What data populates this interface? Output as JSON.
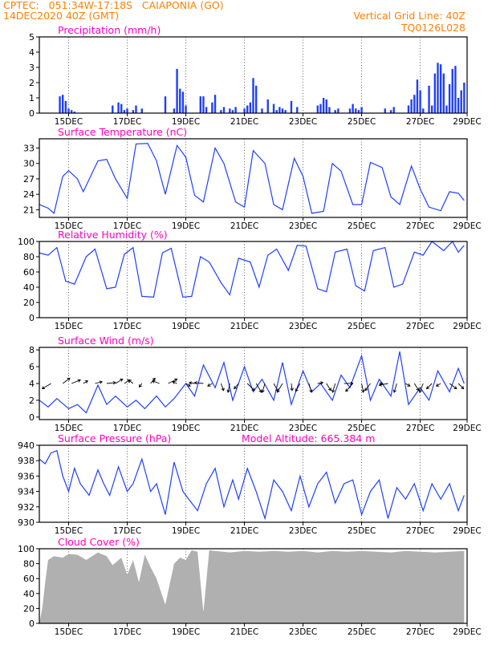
{
  "header": {
    "line1": "CPTEC:   051:34W-17:18S   CAIAPONIA (GO)",
    "line2": "14DEC2020  40Z (GMT)",
    "right1": "Vertical Grid Line: 40Z",
    "right2": "TQ0126L028"
  },
  "colors": {
    "header": "#ff8000",
    "title": "#ff00c0",
    "series": "#1f3fff",
    "cloud": "#b0b0b0",
    "axis": "#000000"
  },
  "chart_data": [
    {
      "id": "precip",
      "type": "bar",
      "title": "Precipitation (mm/h)",
      "ylim": [
        0,
        5
      ],
      "yticks": [
        0,
        1,
        2,
        3,
        4,
        5
      ],
      "x_tick_labels": [
        "15DEC",
        "17DEC",
        "19DEC",
        "21DEC",
        "23DEC",
        "25DEC",
        "27DEC",
        "29DEC"
      ],
      "x": [
        0.7,
        0.8,
        0.9,
        1.0,
        1.1,
        1.2,
        2.5,
        2.7,
        2.8,
        2.9,
        3.0,
        3.2,
        3.3,
        3.5,
        4.3,
        4.6,
        4.7,
        4.8,
        4.9,
        5.0,
        5.5,
        5.6,
        5.7,
        5.9,
        6.0,
        6.2,
        6.3,
        6.5,
        6.6,
        6.7,
        7.0,
        7.1,
        7.2,
        7.3,
        7.4,
        7.6,
        7.8,
        8.0,
        8.1,
        8.2,
        8.3,
        8.4,
        8.6,
        8.8,
        9.5,
        9.6,
        9.7,
        9.8,
        9.9,
        10.1,
        10.2,
        10.6,
        10.7,
        10.8,
        10.9,
        11.0,
        11.8,
        12.0,
        12.1,
        12.6,
        12.7,
        12.8,
        12.9,
        13.0,
        13.1,
        13.3,
        13.4,
        13.5,
        13.6,
        13.7,
        13.8,
        13.9,
        14.0,
        14.1,
        14.2,
        14.3,
        14.4,
        14.5
      ],
      "values": [
        1.1,
        1.2,
        0.8,
        0.3,
        0.2,
        0.1,
        0.5,
        0.7,
        0.6,
        0.2,
        0.3,
        0.2,
        0.5,
        0.3,
        1.1,
        0.3,
        2.9,
        1.6,
        1.4,
        0.5,
        1.1,
        1.1,
        0.4,
        0.7,
        1.2,
        0.2,
        0.4,
        0.3,
        0.2,
        0.4,
        0.3,
        0.5,
        0.7,
        2.3,
        1.8,
        0.3,
        0.9,
        0.6,
        0.2,
        0.4,
        0.3,
        0.2,
        0.8,
        0.4,
        0.5,
        0.6,
        1.0,
        0.9,
        0.4,
        0.2,
        0.3,
        0.3,
        0.6,
        0.3,
        0.2,
        0.4,
        0.3,
        0.2,
        0.4,
        0.5,
        0.9,
        1.2,
        2.2,
        1.5,
        0.3,
        1.8,
        0.5,
        2.6,
        3.3,
        3.2,
        2.6,
        0.5,
        1.9,
        2.9,
        3.1,
        1.0,
        1.5,
        2.0
      ]
    },
    {
      "id": "temp",
      "type": "line",
      "title": "Surface Temperature (nC)",
      "ylim": [
        19.5,
        34.8
      ],
      "yticks": [
        21,
        24,
        27,
        30,
        33
      ],
      "x_tick_labels": [
        "15DEC",
        "17DEC",
        "19DEC",
        "21DEC",
        "23DEC",
        "25DEC",
        "27DEC",
        "29DEC"
      ],
      "x": [
        0.0,
        0.3,
        0.5,
        0.8,
        1.0,
        1.3,
        1.5,
        2.0,
        2.3,
        2.6,
        3.0,
        3.3,
        3.7,
        4.0,
        4.3,
        4.7,
        5.0,
        5.3,
        5.6,
        6.0,
        6.3,
        6.7,
        7.0,
        7.3,
        7.7,
        8.0,
        8.3,
        8.7,
        9.0,
        9.3,
        9.7,
        10.0,
        10.3,
        10.7,
        11.0,
        11.3,
        11.7,
        12.0,
        12.3,
        12.7,
        13.0,
        13.3,
        13.7,
        14.0,
        14.3,
        14.5
      ],
      "values": [
        22.0,
        21.3,
        20.3,
        27.5,
        28.6,
        27.0,
        24.5,
        30.5,
        30.8,
        27.0,
        23.2,
        33.8,
        33.9,
        30.5,
        24.0,
        33.5,
        31.2,
        23.8,
        22.5,
        33.0,
        30.0,
        22.5,
        21.5,
        32.5,
        30.0,
        22.0,
        21.0,
        31.0,
        27.5,
        20.3,
        20.7,
        30.0,
        28.5,
        22.0,
        22.0,
        30.2,
        29.2,
        23.5,
        22.0,
        29.5,
        25.0,
        21.5,
        20.8,
        24.5,
        24.2,
        22.8
      ]
    },
    {
      "id": "rh",
      "type": "line",
      "title": "Relative Humidity (%)",
      "ylim": [
        0,
        100
      ],
      "yticks": [
        0,
        20,
        40,
        60,
        80,
        100
      ],
      "x_tick_labels": [
        "15DEC",
        "17DEC",
        "19DEC",
        "21DEC",
        "23DEC",
        "25DEC",
        "27DEC",
        "29DEC"
      ],
      "x": [
        0.0,
        0.3,
        0.6,
        0.9,
        1.2,
        1.6,
        1.9,
        2.3,
        2.6,
        2.9,
        3.2,
        3.5,
        3.9,
        4.2,
        4.5,
        4.9,
        5.2,
        5.5,
        5.8,
        6.2,
        6.5,
        6.8,
        7.2,
        7.5,
        7.8,
        8.1,
        8.5,
        8.8,
        9.1,
        9.5,
        9.8,
        10.1,
        10.5,
        10.8,
        11.1,
        11.4,
        11.8,
        12.1,
        12.4,
        12.8,
        13.1,
        13.4,
        13.8,
        14.1,
        14.3,
        14.5
      ],
      "values": [
        85,
        82,
        92,
        48,
        44,
        80,
        90,
        38,
        40,
        83,
        92,
        28,
        27,
        85,
        91,
        27,
        28,
        80,
        73,
        46,
        30,
        78,
        73,
        40,
        82,
        90,
        62,
        95,
        94,
        38,
        34,
        86,
        90,
        42,
        35,
        88,
        92,
        40,
        44,
        86,
        82,
        100,
        88,
        100,
        86,
        95
      ]
    },
    {
      "id": "wind",
      "type": "line",
      "title": "Surface Wind (m/s)",
      "ylim": [
        -0.3,
        8.3
      ],
      "yticks": [
        0,
        2,
        4,
        6,
        8
      ],
      "x_tick_labels": [
        "15DEC",
        "17DEC",
        "19DEC",
        "21DEC",
        "23DEC",
        "25DEC",
        "27DEC",
        "29DEC"
      ],
      "x": [
        0.0,
        0.3,
        0.6,
        1.0,
        1.3,
        1.6,
        2.0,
        2.3,
        2.6,
        3.0,
        3.3,
        3.6,
        4.0,
        4.3,
        4.6,
        5.0,
        5.3,
        5.6,
        6.0,
        6.3,
        6.6,
        7.0,
        7.3,
        7.6,
        8.0,
        8.3,
        8.6,
        9.0,
        9.3,
        9.6,
        10.0,
        10.3,
        10.6,
        11.0,
        11.3,
        11.6,
        12.0,
        12.3,
        12.6,
        13.0,
        13.3,
        13.6,
        14.0,
        14.3,
        14.5
      ],
      "values": [
        2.0,
        1.2,
        2.2,
        1.0,
        1.5,
        0.5,
        3.8,
        1.5,
        2.5,
        1.2,
        2.0,
        1.0,
        2.5,
        1.2,
        2.2,
        4.0,
        2.5,
        6.2,
        3.5,
        6.5,
        2.0,
        6.0,
        3.0,
        4.5,
        2.0,
        6.5,
        1.5,
        5.5,
        3.0,
        4.0,
        2.0,
        5.0,
        3.5,
        7.3,
        2.0,
        4.5,
        2.5,
        7.8,
        1.5,
        3.5,
        2.0,
        5.5,
        3.0,
        5.8,
        4.0
      ],
      "vectors_x": [
        0.4,
        0.8,
        1.1,
        1.5,
        1.9,
        2.3,
        2.6,
        2.9,
        3.2,
        3.5,
        3.8,
        4.1,
        4.4,
        4.7,
        5.0,
        5.3,
        5.6,
        5.9,
        6.2,
        6.5,
        6.8,
        7.1,
        7.4,
        7.7,
        8.0,
        8.3,
        8.6,
        8.9,
        9.2,
        9.5,
        9.8,
        10.1,
        10.4,
        10.7,
        11.0,
        11.3,
        11.6,
        11.9,
        12.2,
        12.5,
        12.8,
        13.1,
        13.4,
        13.7,
        14.0,
        14.3
      ],
      "vectors_u": [
        -1,
        0.8,
        1,
        0.5,
        0.8,
        1,
        0.8,
        0.6,
        -0.5,
        -0.3,
        0.5,
        -0.8,
        1,
        -0.5,
        0.5,
        -0.6,
        -1,
        -0.5,
        0.3,
        -0.2,
        -0.5,
        0.8,
        0.6,
        -0.3,
        0.5,
        -0.6,
        0.1,
        -0.5,
        0.3,
        0.6,
        0.5,
        -0.3,
        1,
        -0.8,
        0.2,
        -0.6,
        0.4,
        -1,
        -0.3,
        0.5,
        0.5,
        -0.4,
        -0.6,
        -0.5,
        0.8,
        0.6
      ],
      "vectors_v": [
        -0.6,
        0.6,
        0.4,
        0.3,
        0.2,
        0.1,
        0.5,
        0.4,
        0.4,
        -0.4,
        0.6,
        0.3,
        0.5,
        0.2,
        -0.3,
        0.1,
        0.1,
        -0.3,
        -0.8,
        -1,
        -0.6,
        -0.8,
        -1,
        -1,
        -0.9,
        -1,
        -0.8,
        -0.9,
        -1,
        0.1,
        -0.8,
        -1,
        0,
        -0.9,
        -1,
        -0.8,
        0,
        -0.2,
        -1,
        -0.3,
        -0.8,
        -1,
        -0.6,
        -0.3,
        -0.6,
        -0.6
      ]
    },
    {
      "id": "pressure",
      "type": "line",
      "title": "Surface Pressure (hPa)",
      "subtitle": "Model Altitude: 665.384 m",
      "ylim": [
        930,
        940
      ],
      "yticks": [
        930,
        932,
        934,
        936,
        938,
        940
      ],
      "x_tick_labels": [
        "15DEC",
        "17DEC",
        "19DEC",
        "21DEC",
        "23DEC",
        "25DEC",
        "27DEC",
        "29DEC"
      ],
      "x": [
        0.0,
        0.2,
        0.4,
        0.6,
        0.8,
        1.0,
        1.2,
        1.4,
        1.7,
        2.0,
        2.2,
        2.4,
        2.7,
        3.0,
        3.2,
        3.5,
        3.8,
        4.0,
        4.3,
        4.6,
        4.9,
        5.1,
        5.4,
        5.7,
        6.0,
        6.3,
        6.6,
        6.8,
        7.1,
        7.4,
        7.7,
        8.0,
        8.3,
        8.6,
        8.9,
        9.2,
        9.5,
        9.8,
        10.1,
        10.4,
        10.7,
        11.0,
        11.3,
        11.6,
        11.9,
        12.2,
        12.5,
        12.8,
        13.1,
        13.4,
        13.7,
        14.0,
        14.3,
        14.5
      ],
      "values": [
        938.2,
        937.6,
        939.0,
        939.3,
        936.0,
        934.0,
        937.0,
        935.0,
        933.5,
        936.8,
        935.0,
        933.5,
        937.2,
        934.0,
        935.0,
        938.2,
        934.0,
        935.0,
        931.0,
        937.8,
        934.0,
        933.0,
        931.5,
        935.0,
        937.0,
        932.0,
        935.5,
        933.0,
        937.0,
        934.0,
        930.5,
        935.5,
        934.0,
        931.5,
        936.0,
        932.0,
        935.0,
        936.5,
        932.5,
        935.0,
        935.5,
        931.0,
        934.0,
        935.5,
        930.5,
        934.5,
        933.0,
        935.0,
        931.5,
        935.0,
        933.0,
        935.0,
        931.5,
        933.5
      ]
    },
    {
      "id": "cloud",
      "type": "area",
      "title": "Cloud Cover (%)",
      "ylim": [
        0,
        100
      ],
      "yticks": [
        0,
        20,
        40,
        60,
        80,
        100
      ],
      "x_tick_labels": [
        "15DEC",
        "17DEC",
        "19DEC",
        "21DEC",
        "23DEC",
        "25DEC",
        "27DEC",
        "29DEC"
      ],
      "x": [
        0.0,
        0.1,
        0.2,
        0.3,
        0.5,
        0.8,
        1.0,
        1.3,
        1.6,
        2.0,
        2.3,
        2.5,
        2.8,
        3.0,
        3.2,
        3.4,
        3.6,
        3.8,
        4.0,
        4.3,
        4.6,
        4.8,
        5.0,
        5.2,
        5.4,
        5.6,
        5.8,
        6.0,
        6.5,
        7.0,
        7.5,
        8.0,
        8.5,
        9.0,
        9.5,
        10.0,
        10.5,
        11.0,
        11.5,
        12.0,
        12.5,
        13.0,
        13.5,
        14.0,
        14.5
      ],
      "values": [
        0,
        20,
        55,
        85,
        90,
        88,
        93,
        92,
        85,
        95,
        90,
        78,
        88,
        65,
        85,
        55,
        92,
        75,
        60,
        25,
        80,
        88,
        85,
        98,
        96,
        15,
        98,
        97,
        95,
        97,
        96,
        97,
        96,
        97,
        95,
        97,
        96,
        97,
        96,
        95,
        97,
        96,
        95,
        96,
        97
      ]
    }
  ]
}
